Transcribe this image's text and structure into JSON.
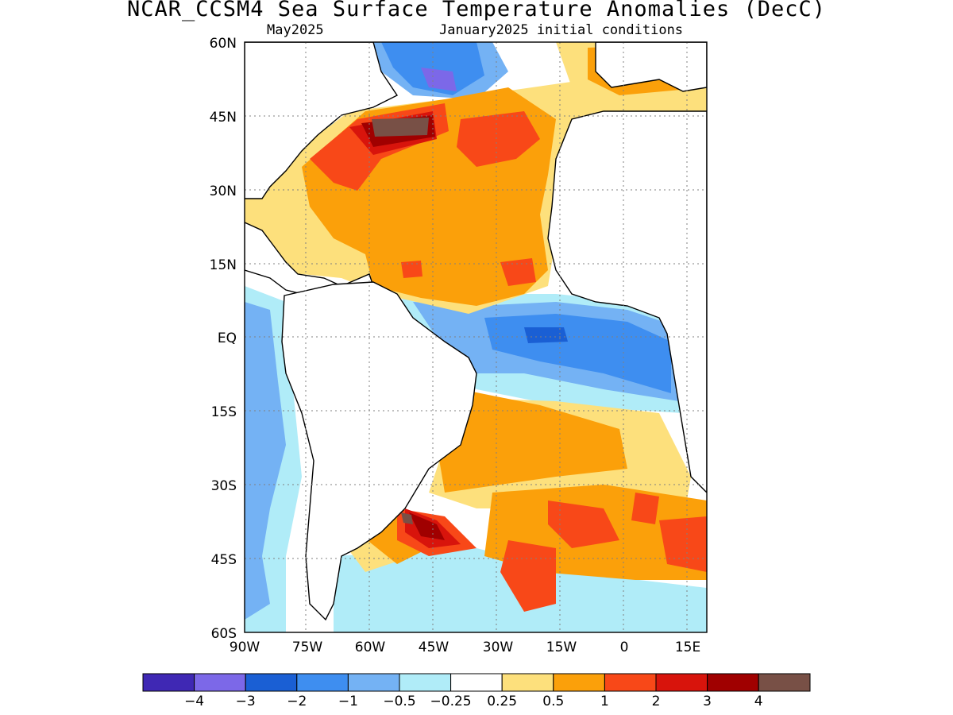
{
  "header": {
    "title": "NCAR_CCSM4 Sea Surface Temperature Anomalies (DecC)",
    "subtitle_left": "May2025",
    "subtitle_right": "January2025 initial conditions"
  },
  "map": {
    "projection": "lat-lon",
    "lon_range": [
      -90,
      17
    ],
    "lat_range": [
      -60,
      60
    ],
    "lat_tick_labels": [
      "60N",
      "45N",
      "30N",
      "15N",
      "EQ",
      "15S",
      "30S",
      "45S",
      "60S"
    ],
    "lon_tick_labels": [
      "90W",
      "75W",
      "60W",
      "45W",
      "30W",
      "15W",
      "0",
      "15E"
    ],
    "grid": "dotted",
    "land_fill": "#ffffff"
  },
  "colorbar": {
    "labels": [
      "−4",
      "−3",
      "−2",
      "−1",
      "−0.5",
      "−0.25",
      "0.25",
      "0.5",
      "1",
      "2",
      "3",
      "4"
    ],
    "colors": [
      "#3f28b4",
      "#7c68e8",
      "#1a5fd4",
      "#3e8ef0",
      "#74b2f4",
      "#b0ecf8",
      "#ffffff",
      "#fde07c",
      "#fba00a",
      "#f84818",
      "#d8140c",
      "#a00000",
      "#785046"
    ]
  }
}
